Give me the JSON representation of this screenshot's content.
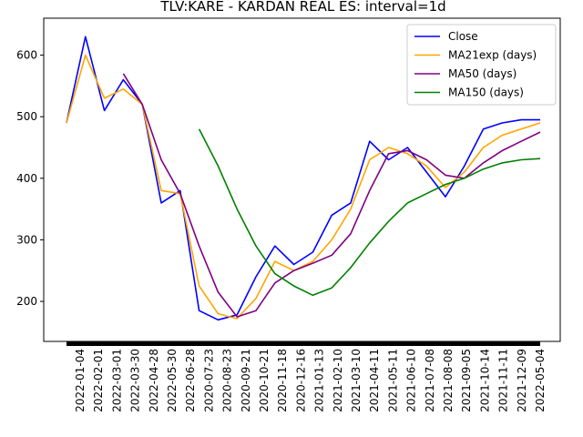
{
  "chart_data": {
    "type": "line",
    "title": "TLV:KARE - KARDAN REAL ES: interval=1d",
    "xlabel": "",
    "ylabel": "",
    "ylim": [
      135,
      660
    ],
    "yticks": [
      200,
      300,
      400,
      500,
      600
    ],
    "grid": false,
    "legend_position": "top-right",
    "x_tick_labels": [
      "2022-01-04",
      "2022-02-01",
      "2022-03-01",
      "2022-03-30",
      "2022-04-28",
      "2022-05-30",
      "2022-06-28",
      "2020-07-23",
      "2020-08-23",
      "2020-09-21",
      "2020-10-21",
      "2020-11-18",
      "2020-12-16",
      "2021-01-13",
      "2021-02-10",
      "2021-03-10",
      "2021-04-11",
      "2021-05-11",
      "2021-06-10",
      "2021-07-08",
      "2021-08-08",
      "2021-09-05",
      "2021-10-14",
      "2021-11-11",
      "2021-12-09",
      "2022-05-04"
    ],
    "x": [
      0,
      4,
      8,
      12,
      16,
      20,
      24,
      28,
      32,
      36,
      40,
      44,
      48,
      52,
      56,
      60,
      64,
      68,
      72,
      76,
      80,
      84,
      88,
      92,
      96,
      100
    ],
    "series": [
      {
        "name": "Close",
        "color": "#0000ff",
        "values": [
          490,
          630,
          510,
          560,
          520,
          360,
          380,
          185,
          170,
          178,
          240,
          290,
          260,
          280,
          340,
          360,
          460,
          430,
          450,
          410,
          370,
          420,
          480,
          490,
          495,
          495
        ]
      },
      {
        "name": "MA21exp (days)",
        "color": "#ffa500",
        "values": [
          490,
          600,
          530,
          545,
          520,
          380,
          375,
          225,
          180,
          172,
          205,
          265,
          250,
          265,
          300,
          350,
          430,
          450,
          440,
          420,
          385,
          410,
          450,
          470,
          480,
          490
        ]
      },
      {
        "name": "MA50 (days)",
        "color": "#800080",
        "values": [
          null,
          null,
          null,
          570,
          520,
          430,
          375,
          290,
          215,
          175,
          185,
          230,
          250,
          262,
          275,
          310,
          380,
          440,
          445,
          430,
          405,
          400,
          425,
          445,
          460,
          475
        ]
      },
      {
        "name": "MA150 (days)",
        "color": "#008000",
        "values": [
          null,
          null,
          null,
          null,
          null,
          null,
          null,
          480,
          420,
          350,
          290,
          245,
          225,
          210,
          222,
          255,
          295,
          330,
          360,
          375,
          390,
          400,
          415,
          425,
          430,
          432
        ]
      }
    ]
  }
}
